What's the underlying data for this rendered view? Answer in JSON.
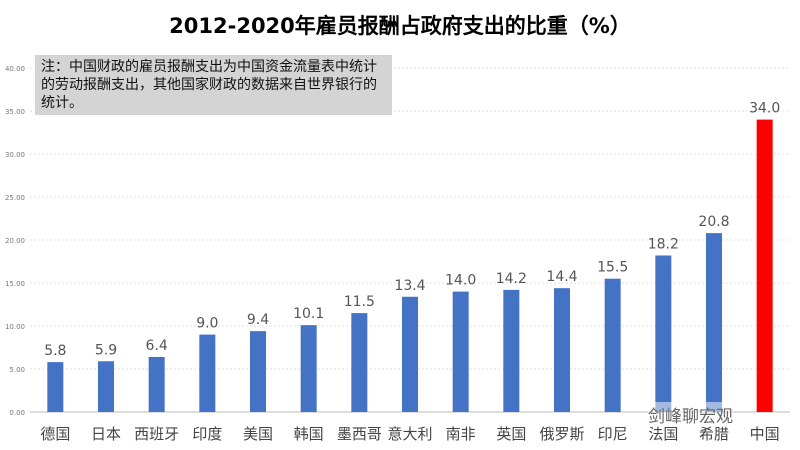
{
  "chart_data": {
    "type": "bar",
    "title": "2012-2020年雇员报酬占政府支出的比重（%）",
    "categories": [
      "德国",
      "日本",
      "西班牙",
      "印度",
      "美国",
      "韩国",
      "墨西哥",
      "意大利",
      "南非",
      "英国",
      "俄罗斯",
      "印尼",
      "法国",
      "希腊",
      "中国"
    ],
    "values": [
      5.8,
      5.9,
      6.4,
      9.0,
      9.4,
      10.1,
      11.5,
      13.4,
      14.0,
      14.2,
      14.4,
      15.5,
      18.2,
      20.8,
      34.0
    ],
    "data_labels": [
      "5.8",
      "5.9",
      "6.4",
      "9.0",
      "9.4",
      "10.1",
      "11.5",
      "13.4",
      "14.0",
      "14.2",
      "14.4",
      "15.5",
      "18.2",
      "20.8",
      "34.0"
    ],
    "ylim": [
      0,
      40
    ],
    "yticks": [
      "0.00",
      "5.00",
      "10.00",
      "15.00",
      "20.00",
      "25.00",
      "30.00",
      "35.00",
      "40.00"
    ],
    "grid": true,
    "colors": {
      "default": "#4472c4",
      "highlight": "#ff0000"
    },
    "highlight_category": "中国"
  },
  "note": "注：中国财政的雇员报酬支出为中国资金流量表中统计的劳动报酬支出，其他国家财政的数据来自世界银行的统计。",
  "watermark": "剑峰聊宏观"
}
